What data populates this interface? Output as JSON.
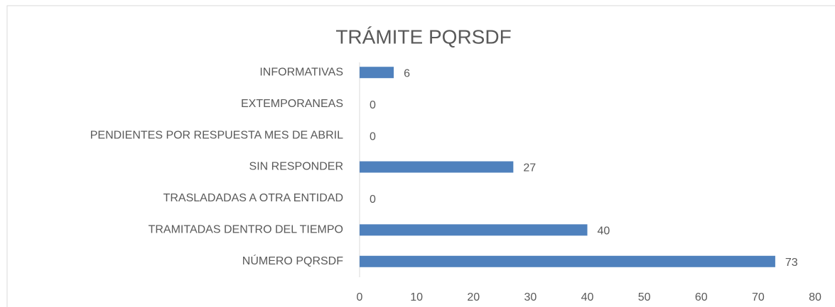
{
  "chart_data": {
    "type": "bar",
    "orientation": "horizontal",
    "title": "TRÁMITE PQRSDF",
    "categories": [
      "INFORMATIVAS",
      "EXTEMPORANEAS",
      "PENDIENTES POR RESPUESTA MES DE ABRIL",
      "SIN RESPONDER",
      "TRASLADADAS A OTRA ENTIDAD",
      "TRAMITADAS DENTRO DEL TIEMPO",
      "NÚMERO PQRSDF"
    ],
    "values": [
      6,
      0,
      0,
      27,
      0,
      40,
      73
    ],
    "color": "#4f81bd",
    "xlim": [
      0,
      80
    ],
    "xticks": [
      0,
      10,
      20,
      30,
      40,
      50,
      60,
      70,
      80
    ],
    "grid": false
  }
}
